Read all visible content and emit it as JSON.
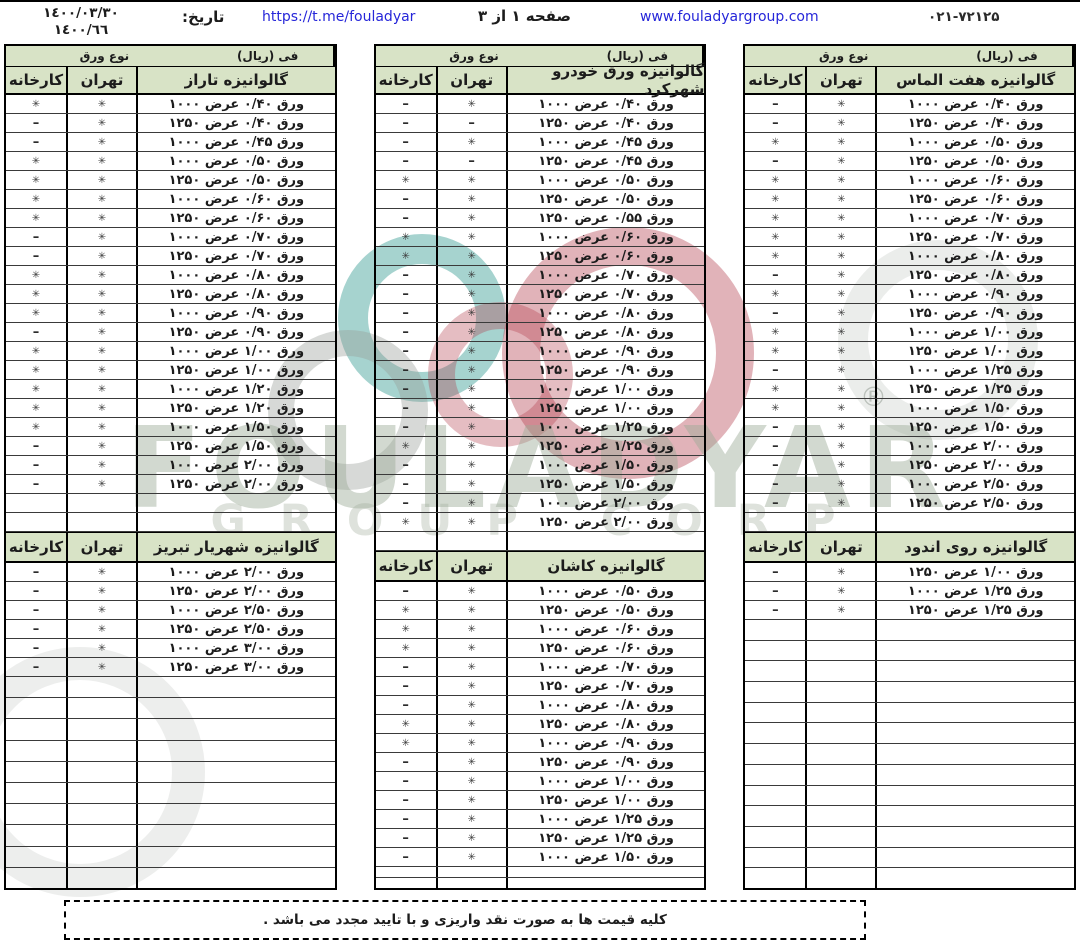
{
  "header": {
    "date_line1": "١٤٠٠/٠٣/٣٠",
    "date_line2": "١٤٠٠/٦٦",
    "date_label": "تاریخ:",
    "telegram": "https://t.me/fouladyar",
    "page_info": "صفحه ۱ از ۳",
    "website": "www.fouladyargroup.com",
    "phone": "۰۲۱-۷۲۱۲۵"
  },
  "labels": {
    "type_header": "نوع ورق",
    "price_header": "فی (ریال)",
    "tehran": "تهران",
    "factory": "کارخانه"
  },
  "symbols": {
    "masked_price": "✳",
    "unavailable": "–"
  },
  "watermark": {
    "brand": "FOULADYAR",
    "sub": "GROUP CORP",
    "registered": "®"
  },
  "colors": {
    "header_bg": "#d8e3c6",
    "border": "#000000",
    "link_blue": "#2626d9",
    "ring_teal": "#2c968c",
    "ring_red": "#af3746",
    "ring_gray": "#969c96",
    "watermark_text": "#9caa96"
  },
  "footer": {
    "note": "کلیه قیمت ها به صورت نقد واریزی و با تایید مجدد می باشد ."
  },
  "tables": [
    {
      "name": "left",
      "trailing_fillers": 10,
      "sections": [
        {
          "title": "گالوانیزه تاراز",
          "empty_rows_before": 0,
          "rows": [
            [
              "ورق ۰/۴۰ عرض ۱۰۰۰",
              "✳",
              "✳"
            ],
            [
              "ورق ۰/۴۰ عرض ۱۲۵۰",
              "✳",
              "–"
            ],
            [
              "ورق ۰/۴۵ عرض ۱۰۰۰",
              "✳",
              "–"
            ],
            [
              "ورق ۰/۵۰ عرض ۱۰۰۰",
              "✳",
              "✳"
            ],
            [
              "ورق ۰/۵۰ عرض ۱۲۵۰",
              "✳",
              "✳"
            ],
            [
              "ورق ۰/۶۰ عرض ۱۰۰۰",
              "✳",
              "✳"
            ],
            [
              "ورق ۰/۶۰ عرض ۱۲۵۰",
              "✳",
              "✳"
            ],
            [
              "ورق ۰/۷۰ عرض ۱۰۰۰",
              "✳",
              "–"
            ],
            [
              "ورق ۰/۷۰ عرض ۱۲۵۰",
              "✳",
              "–"
            ],
            [
              "ورق ۰/۸۰ عرض ۱۰۰۰",
              "✳",
              "✳"
            ],
            [
              "ورق ۰/۸۰ عرض ۱۲۵۰",
              "✳",
              "✳"
            ],
            [
              "ورق ۰/۹۰ عرض ۱۰۰۰",
              "✳",
              "✳"
            ],
            [
              "ورق ۰/۹۰ عرض ۱۲۵۰",
              "✳",
              "–"
            ],
            [
              "ورق ۱/۰۰ عرض ۱۰۰۰",
              "✳",
              "✳"
            ],
            [
              "ورق ۱/۰۰ عرض ۱۲۵۰",
              "✳",
              "✳"
            ],
            [
              "ورق ۱/۲۰ عرض ۱۰۰۰",
              "✳",
              "✳"
            ],
            [
              "ورق ۱/۲۰ عرض ۱۲۵۰",
              "✳",
              "✳"
            ],
            [
              "ورق ۱/۵۰ عرض ۱۰۰۰",
              "✳",
              "✳"
            ],
            [
              "ورق ۱/۵۰ عرض ۱۲۵۰",
              "✳",
              "–"
            ],
            [
              "ورق ۲/۰۰ عرض ۱۰۰۰",
              "✳",
              "–"
            ],
            [
              "ورق ۲/۰۰ عرض ۱۲۵۰",
              "✳",
              "–"
            ]
          ]
        },
        {
          "title": "گالوانیزه شهریار تبریز",
          "empty_rows_before": 2,
          "rows": [
            [
              "ورق ۲/۰۰ عرض ۱۰۰۰",
              "✳",
              "–"
            ],
            [
              "ورق ۲/۰۰ عرض ۱۲۵۰",
              "✳",
              "–"
            ],
            [
              "ورق ۲/۵۰ عرض ۱۰۰۰",
              "✳",
              "–"
            ],
            [
              "ورق ۲/۵۰ عرض ۱۲۵۰",
              "✳",
              "–"
            ],
            [
              "ورق ۳/۰۰ عرض ۱۰۰۰",
              "✳",
              "–"
            ],
            [
              "ورق ۳/۰۰ عرض ۱۲۵۰",
              "✳",
              "–"
            ]
          ]
        }
      ]
    },
    {
      "name": "middle",
      "trailing_fillers": 2,
      "sections": [
        {
          "title": "گالوانیزه ورق خودرو شهرکرد",
          "empty_rows_before": 0,
          "rows": [
            [
              "ورق ۰/۴۰ عرض ۱۰۰۰",
              "✳",
              "–"
            ],
            [
              "ورق ۰/۴۰ عرض ۱۲۵۰",
              "–",
              "–"
            ],
            [
              "ورق ۰/۴۵ عرض ۱۰۰۰",
              "✳",
              "–"
            ],
            [
              "ورق ۰/۴۵ عرض ۱۲۵۰",
              "–",
              "–"
            ],
            [
              "ورق ۰/۵۰ عرض ۱۰۰۰",
              "✳",
              "✳"
            ],
            [
              "ورق ۰/۵۰ عرض ۱۲۵۰",
              "✳",
              "–"
            ],
            [
              "ورق ۰/۵۵ عرض ۱۲۵۰",
              "✳",
              "–"
            ],
            [
              "ورق ۰/۶۰ عرض ۱۰۰۰",
              "✳",
              "✳"
            ],
            [
              "ورق ۰/۶۰ عرض ۱۲۵۰",
              "✳",
              "✳"
            ],
            [
              "ورق ۰/۷۰ عرض ۱۰۰۰",
              "✳",
              "–"
            ],
            [
              "ورق ۰/۷۰ عرض ۱۲۵۰",
              "✳",
              "–"
            ],
            [
              "ورق ۰/۸۰ عرض ۱۰۰۰",
              "✳",
              "–"
            ],
            [
              "ورق ۰/۸۰ عرض ۱۲۵۰",
              "✳",
              "–"
            ],
            [
              "ورق ۰/۹۰ عرض ۱۰۰۰",
              "✳",
              "–"
            ],
            [
              "ورق ۰/۹۰ عرض ۱۲۵۰",
              "✳",
              "–"
            ],
            [
              "ورق ۱/۰۰ عرض ۱۰۰۰",
              "✳",
              "–"
            ],
            [
              "ورق ۱/۰۰ عرض ۱۲۵۰",
              "✳",
              "–"
            ],
            [
              "ورق ۱/۲۵ عرض ۱۰۰۰",
              "✳",
              "–"
            ],
            [
              "ورق ۱/۲۵ عرض ۱۲۵۰",
              "✳",
              "✳"
            ],
            [
              "ورق ۱/۵۰ عرض ۱۰۰۰",
              "✳",
              "–"
            ],
            [
              "ورق ۱/۵۰ عرض ۱۲۵۰",
              "✳",
              "–"
            ],
            [
              "ورق ۲/۰۰ عرض ۱۰۰۰",
              "✳",
              "–"
            ],
            [
              "ورق ۲/۰۰ عرض ۱۲۵۰",
              "✳",
              "✳"
            ]
          ]
        },
        {
          "title": "گالوانیزه کاشان",
          "empty_rows_before": 1,
          "rows": [
            [
              "ورق ۰/۵۰ عرض ۱۰۰۰",
              "✳",
              "–"
            ],
            [
              "ورق ۰/۵۰ عرض ۱۲۵۰",
              "✳",
              "✳"
            ],
            [
              "ورق ۰/۶۰ عرض ۱۰۰۰",
              "✳",
              "✳"
            ],
            [
              "ورق ۰/۶۰ عرض ۱۲۵۰",
              "✳",
              "✳"
            ],
            [
              "ورق ۰/۷۰ عرض ۱۰۰۰",
              "✳",
              "–"
            ],
            [
              "ورق ۰/۷۰ عرض ۱۲۵۰",
              "✳",
              "–"
            ],
            [
              "ورق ۰/۸۰ عرض ۱۰۰۰",
              "✳",
              "–"
            ],
            [
              "ورق ۰/۸۰ عرض ۱۲۵۰",
              "✳",
              "✳"
            ],
            [
              "ورق ۰/۹۰ عرض ۱۰۰۰",
              "✳",
              "✳"
            ],
            [
              "ورق ۰/۹۰ عرض ۱۲۵۰",
              "✳",
              "–"
            ],
            [
              "ورق ۱/۰۰ عرض ۱۰۰۰",
              "✳",
              "–"
            ],
            [
              "ورق ۱/۰۰ عرض ۱۲۵۰",
              "✳",
              "–"
            ],
            [
              "ورق ۱/۲۵ عرض ۱۰۰۰",
              "✳",
              "–"
            ],
            [
              "ورق ۱/۲۵ عرض ۱۲۵۰",
              "✳",
              "–"
            ],
            [
              "ورق ۱/۵۰ عرض ۱۰۰۰",
              "✳",
              "–"
            ]
          ]
        }
      ]
    },
    {
      "name": "right",
      "trailing_fillers": 13,
      "sections": [
        {
          "title": "گالوانیزه هفت الماس",
          "empty_rows_before": 0,
          "rows": [
            [
              "ورق ۰/۴۰ عرض ۱۰۰۰",
              "✳",
              "–"
            ],
            [
              "ورق ۰/۴۰ عرض ۱۲۵۰",
              "✳",
              "–"
            ],
            [
              "ورق ۰/۵۰ عرض ۱۰۰۰",
              "✳",
              "✳"
            ],
            [
              "ورق ۰/۵۰ عرض ۱۲۵۰",
              "✳",
              "–"
            ],
            [
              "ورق ۰/۶۰ عرض ۱۰۰۰",
              "✳",
              "✳"
            ],
            [
              "ورق ۰/۶۰ عرض ۱۲۵۰",
              "✳",
              "✳"
            ],
            [
              "ورق ۰/۷۰ عرض ۱۰۰۰",
              "✳",
              "✳"
            ],
            [
              "ورق ۰/۷۰ عرض ۱۲۵۰",
              "✳",
              "✳"
            ],
            [
              "ورق ۰/۸۰ عرض ۱۰۰۰",
              "✳",
              "✳"
            ],
            [
              "ورق ۰/۸۰ عرض ۱۲۵۰",
              "✳",
              "–"
            ],
            [
              "ورق ۰/۹۰ عرض ۱۰۰۰",
              "✳",
              "✳"
            ],
            [
              "ورق ۰/۹۰ عرض ۱۲۵۰",
              "✳",
              "–"
            ],
            [
              "ورق ۱/۰۰ عرض ۱۰۰۰",
              "✳",
              "✳"
            ],
            [
              "ورق ۱/۰۰ عرض ۱۲۵۰",
              "✳",
              "✳"
            ],
            [
              "ورق ۱/۲۵ عرض ۱۰۰۰",
              "✳",
              "–"
            ],
            [
              "ورق ۱/۲۵ عرض ۱۲۵۰",
              "✳",
              "✳"
            ],
            [
              "ورق ۱/۵۰ عرض ۱۰۰۰",
              "✳",
              "✳"
            ],
            [
              "ورق ۱/۵۰ عرض ۱۲۵۰",
              "✳",
              "–"
            ],
            [
              "ورق ۲/۰۰ عرض ۱۰۰۰",
              "✳",
              "–"
            ],
            [
              "ورق ۲/۰۰ عرض ۱۲۵۰",
              "✳",
              "–"
            ],
            [
              "ورق ۲/۵۰ عرض ۱۰۰۰",
              "✳",
              "–"
            ],
            [
              "ورق ۲/۵۰ عرض ۱۲۵۰",
              "✳",
              "–"
            ]
          ]
        },
        {
          "title": "گالوانیزه روی اندود",
          "empty_rows_before": 1,
          "rows": [
            [
              "ورق ۱/۰۰ عرض ۱۲۵۰",
              "✳",
              "–"
            ],
            [
              "ورق ۱/۲۵ عرض ۱۰۰۰",
              "✳",
              "–"
            ],
            [
              "ورق ۱/۲۵ عرض ۱۲۵۰",
              "✳",
              "–"
            ]
          ]
        }
      ]
    }
  ]
}
